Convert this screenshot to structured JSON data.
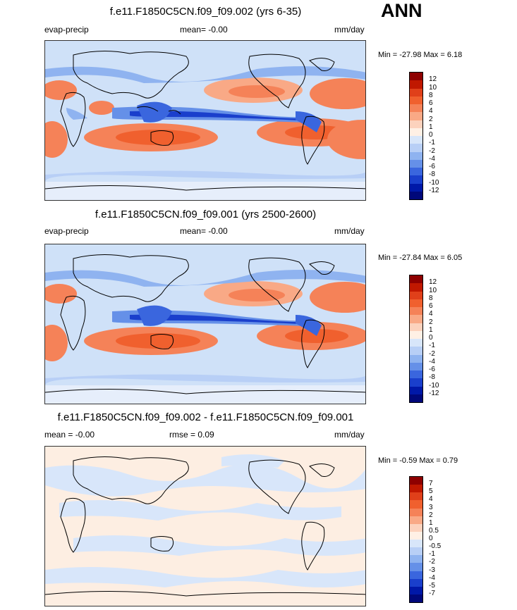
{
  "season": "ANN",
  "panels": [
    {
      "title": "f.e11.F1850C5CN.f09_f09.002 (yrs 6-35)",
      "left_label": "evap-precip",
      "mid_label": "mean=  -0.00",
      "right_label": "mm/day",
      "minmax": "Min = -27.98 Max =   6.18",
      "ticks": [
        "12",
        "10",
        "8",
        "6",
        "4",
        "2",
        "1",
        "0",
        "-1",
        "-2",
        "-4",
        "-6",
        "-8",
        "-10",
        "-12"
      ],
      "colors": [
        "#8e0000",
        "#c01800",
        "#e0401a",
        "#f0602e",
        "#f58258",
        "#f9a986",
        "#fcd2bd",
        "#fff0e5",
        "#d8e6fa",
        "#b8cff6",
        "#8fb3f0",
        "#6590e8",
        "#3a66de",
        "#1a3fcc",
        "#0018a8",
        "#00087a"
      ]
    },
    {
      "title": "f.e11.F1850C5CN.f09_f09.001 (yrs 2500-2600)",
      "left_label": "evap-precip",
      "mid_label": "mean=  -0.00",
      "right_label": "mm/day",
      "minmax": "Min = -27.84 Max =   6.05",
      "ticks": [
        "12",
        "10",
        "8",
        "6",
        "4",
        "2",
        "1",
        "0",
        "-1",
        "-2",
        "-4",
        "-6",
        "-8",
        "-10",
        "-12"
      ],
      "colors": [
        "#8e0000",
        "#c01800",
        "#e0401a",
        "#f0602e",
        "#f58258",
        "#f9a986",
        "#fcd2bd",
        "#fff0e5",
        "#d8e6fa",
        "#b8cff6",
        "#8fb3f0",
        "#6590e8",
        "#3a66de",
        "#1a3fcc",
        "#0018a8",
        "#00087a"
      ]
    },
    {
      "title": "f.e11.F1850C5CN.f09_f09.002 - f.e11.F1850C5CN.f09_f09.001",
      "left_label": "mean =  -0.00",
      "mid_label": "rmse =   0.09",
      "right_label": "mm/day",
      "minmax": "Min =  -0.59 Max =   0.79",
      "ticks": [
        "7",
        "5",
        "4",
        "3",
        "2",
        "1",
        "0.5",
        "0",
        "-0.5",
        "-1",
        "-2",
        "-3",
        "-4",
        "-5",
        "-7"
      ],
      "colors": [
        "#8e0000",
        "#c01800",
        "#e0401a",
        "#f0602e",
        "#f58258",
        "#f9a986",
        "#fcd2bd",
        "#fff0e5",
        "#d8e6fa",
        "#b8cff6",
        "#8fb3f0",
        "#6590e8",
        "#3a66de",
        "#1a3fcc",
        "#0018a8",
        "#00087a"
      ]
    }
  ]
}
